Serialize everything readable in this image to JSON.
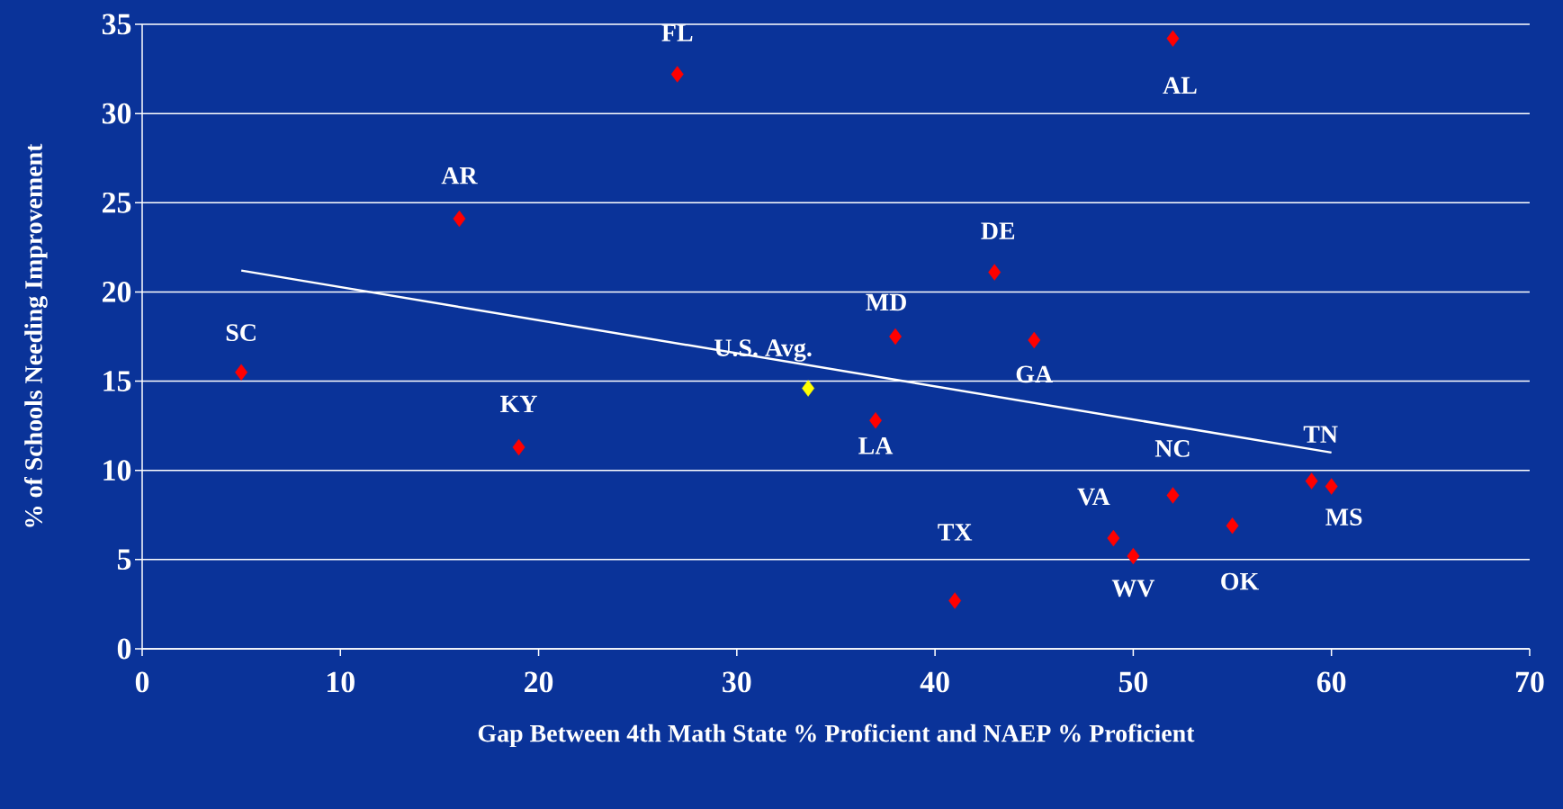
{
  "chart_data": {
    "type": "scatter",
    "xlabel": "Gap Between 4th Math State % Proficient and NAEP % Proficient",
    "ylabel": "% of Schools Needing Improvement",
    "xlim": [
      0,
      70
    ],
    "xticks": [
      0,
      10,
      20,
      30,
      40,
      50,
      60,
      70
    ],
    "ylim": [
      0,
      35
    ],
    "yticks": [
      0,
      5,
      10,
      15,
      20,
      25,
      30,
      35
    ],
    "grid": "y",
    "series": [
      {
        "marker": "diamond",
        "color": "#ff0000",
        "x": [
          5,
          16,
          19,
          27,
          38,
          37,
          41,
          43,
          45,
          49,
          50,
          52,
          52,
          55,
          59,
          60
        ],
        "values": [
          15.5,
          24.1,
          11.3,
          32.2,
          17.5,
          12.8,
          2.7,
          21.1,
          17.3,
          6.2,
          5.2,
          34.2,
          8.6,
          6.9,
          9.4,
          9.1
        ]
      },
      {
        "marker": "diamond",
        "color": "#ffff00",
        "x": [
          33.6
        ],
        "values": [
          14.6
        ]
      },
      {
        "type": "line",
        "color": "#ffffff",
        "line_style": "solid",
        "x": [
          5,
          60
        ],
        "values": [
          21.2,
          11.0
        ]
      }
    ],
    "annotations": [
      {
        "text": "SC",
        "x": 5,
        "y": 15.5
      },
      {
        "text": "AR",
        "x": 16,
        "y": 24.1
      },
      {
        "text": "KY",
        "x": 19,
        "y": 11.3
      },
      {
        "text": "FL",
        "x": 27,
        "y": 32.2
      },
      {
        "text": "MD",
        "x": 38,
        "y": 17.5
      },
      {
        "text": "LA",
        "x": 37,
        "y": 12.8
      },
      {
        "text": "TX",
        "x": 41,
        "y": 2.7
      },
      {
        "text": "DE",
        "x": 43,
        "y": 21.1
      },
      {
        "text": "GA",
        "x": 45,
        "y": 17.3
      },
      {
        "text": "VA",
        "x": 49,
        "y": 6.2
      },
      {
        "text": "WV",
        "x": 50,
        "y": 5.2
      },
      {
        "text": "AL",
        "x": 52,
        "y": 34.2
      },
      {
        "text": "NC",
        "x": 52,
        "y": 8.6
      },
      {
        "text": "OK",
        "x": 55,
        "y": 6.9
      },
      {
        "text": "TN",
        "x": 59,
        "y": 9.4
      },
      {
        "text": "MS",
        "x": 60,
        "y": 9.1
      },
      {
        "text": "U.S. Avg.",
        "x": 33.6,
        "y": 14.6
      }
    ]
  }
}
